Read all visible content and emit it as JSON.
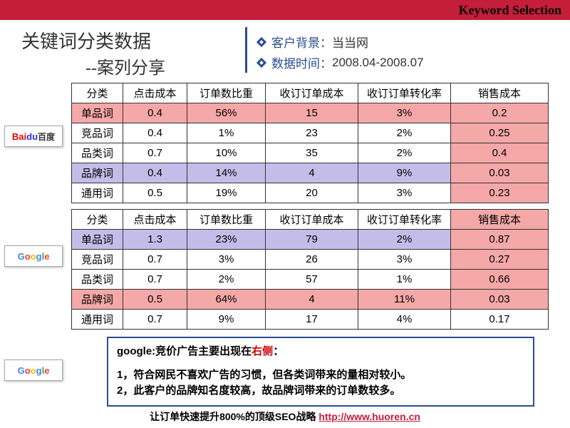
{
  "topbar": {
    "title": "Keyword Selection"
  },
  "title": {
    "line1": "关键词分类数据",
    "line2": "--案列分享"
  },
  "meta": {
    "client_label": "客户背景：",
    "client_value": "当当网",
    "date_label": "数据时间：",
    "date_value": "2008.04-2008.07"
  },
  "columns": [
    "分类",
    "点击成本",
    "订单数比重",
    "收订订单成本",
    "收订订单转化率",
    "销售成本"
  ],
  "baidu": {
    "logo_text": "Baidu百度",
    "rows": [
      {
        "cat": "单品词",
        "cpc": "0.4",
        "ord": "56%",
        "cost": "15",
        "cvr": "3%",
        "sales": "0.2",
        "hl": "pink"
      },
      {
        "cat": "竞品词",
        "cpc": "0.4",
        "ord": "1%",
        "cost": "23",
        "cvr": "2%",
        "sales": "0.25",
        "hl": ""
      },
      {
        "cat": "品类词",
        "cpc": "0.7",
        "ord": "10%",
        "cost": "35",
        "cvr": "2%",
        "sales": "0.4",
        "hl": ""
      },
      {
        "cat": "品牌词",
        "cpc": "0.4",
        "ord": "14%",
        "cost": "4",
        "cvr": "9%",
        "sales": "0.03",
        "hl": "purple"
      },
      {
        "cat": "通用词",
        "cpc": "0.5",
        "ord": "19%",
        "cost": "20",
        "cvr": "3%",
        "sales": "0.23",
        "hl": ""
      }
    ]
  },
  "google": {
    "logo_text": "Google",
    "rows": [
      {
        "cat": "单品词",
        "cpc": "1.3",
        "ord": "23%",
        "cost": "79",
        "cvr": "2%",
        "sales": "0.87",
        "hl": "purple"
      },
      {
        "cat": "竞品词",
        "cpc": "0.7",
        "ord": "3%",
        "cost": "26",
        "cvr": "3%",
        "sales": "0.27",
        "hl": ""
      },
      {
        "cat": "品类词",
        "cpc": "0.7",
        "ord": "2%",
        "cost": "57",
        "cvr": "1%",
        "sales": "0.66",
        "hl": ""
      },
      {
        "cat": "品牌词",
        "cpc": "0.5",
        "ord": "64%",
        "cost": "4",
        "cvr": "11%",
        "sales": "0.03",
        "hl": "pink"
      },
      {
        "cat": "通用词",
        "cpc": "0.7",
        "ord": "9%",
        "cost": "17",
        "cvr": "4%",
        "sales": "0.17",
        "hl": ""
      }
    ]
  },
  "note": {
    "prefix": "google:",
    "headline": "竞价广告主要出现在",
    "red_word": "右侧",
    "colon": "：",
    "l1": "1，符合网民不喜欢广告的习惯，但各类词带来的量相对较小。",
    "l2": "2，此客户的品牌知名度较高，故品牌词带来的订单数较多。"
  },
  "footer": {
    "text": "让订单快速提升800%的顶级SEO战略 ",
    "link": "http://www.huoren.cn"
  },
  "colors": {
    "pink": "#f5a8a8",
    "purple": "#c5bde9",
    "accent": "#2a4d8f",
    "topbar": "#c41e3a"
  }
}
